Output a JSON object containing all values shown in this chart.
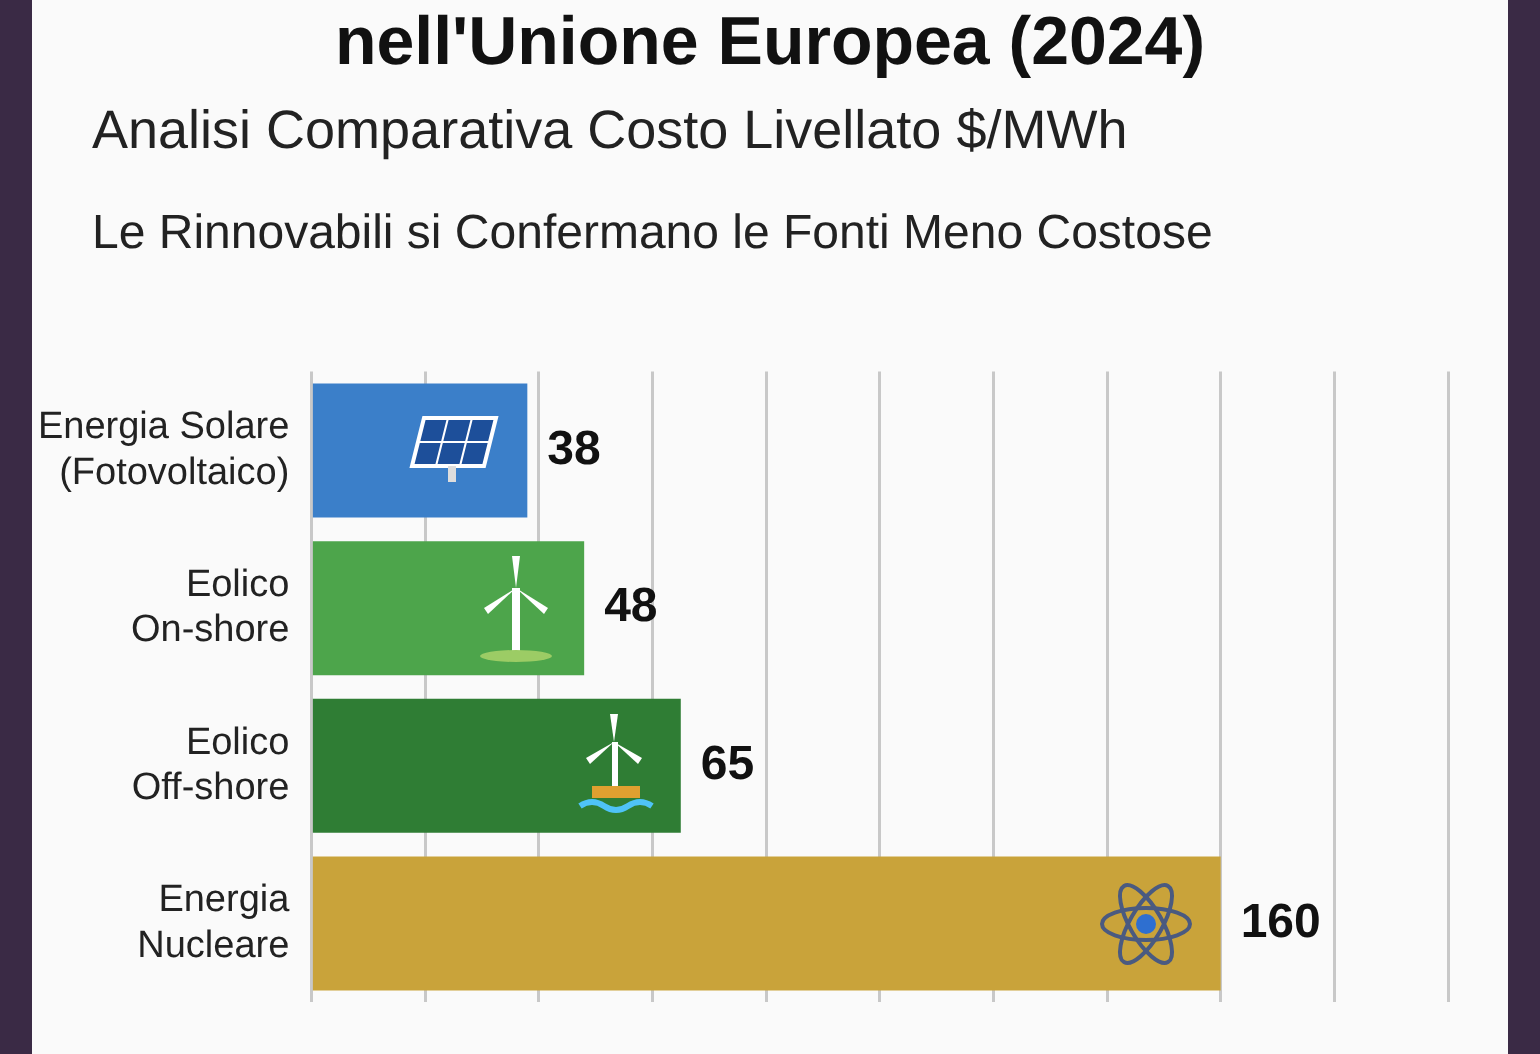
{
  "chart_data": {
    "type": "bar",
    "orientation": "horizontal",
    "title": "nell'Unione Europea (2024)",
    "subtitle": "Analisi Comparativa Costo Livellato $/MWh",
    "annotations": [
      "Le Rinnovabili si Confermano le Fonti Meno Costose"
    ],
    "categories": [
      "Energia Solare (Fotovoltaico)",
      "Eolico On-shore",
      "Eolico Off-shore",
      "Energia Nucleare"
    ],
    "values": [
      38,
      48,
      65,
      160
    ],
    "colors": [
      "#3b7fc9",
      "#4da54b",
      "#2f7d34",
      "#c9a33a"
    ],
    "data_labels": true,
    "grid": "x",
    "tick_labels": "y"
  }
}
